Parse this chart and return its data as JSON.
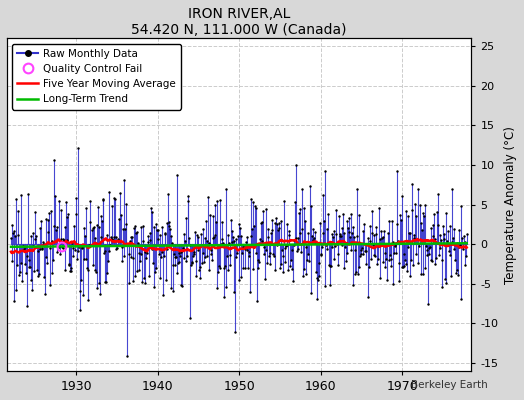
{
  "title": "IRON RIVER,AL",
  "subtitle": "54.420 N, 111.000 W (Canada)",
  "ylabel": "Temperature Anomaly (°C)",
  "watermark": "Berkeley Earth",
  "xlim": [
    1921.5,
    1978.5
  ],
  "ylim": [
    -16,
    26
  ],
  "yticks": [
    -15,
    -10,
    -5,
    0,
    5,
    10,
    15,
    20,
    25
  ],
  "xticks": [
    1930,
    1940,
    1950,
    1960,
    1970
  ],
  "start_year": 1922,
  "end_year": 1978,
  "fig_bg_color": "#d8d8d8",
  "plot_bg_color": "#ffffff",
  "grid_color": "#cccccc",
  "raw_line_color": "#3333cc",
  "raw_marker_color": "#000000",
  "moving_avg_color": "#ff0000",
  "trend_color": "#00bb00",
  "qc_fail_color": "#ff44ff"
}
